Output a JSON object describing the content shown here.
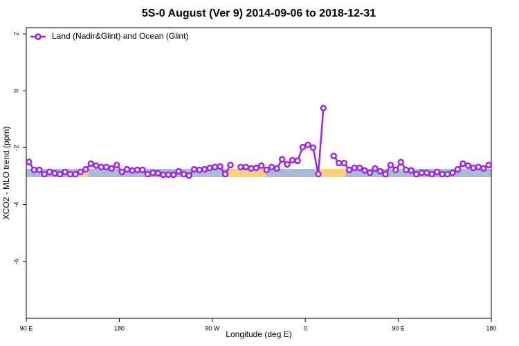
{
  "chart_data": {
    "type": "line",
    "title": "5S-0 August (Ver 9)   2014-09-06 to 2018-12-31",
    "x_label": "Longitude (deg E)",
    "y_label": "XCO2 - MLO trend (ppm)",
    "xlim": [
      90,
      540
    ],
    "ylim": [
      -8,
      2.22
    ],
    "xticks": [
      {
        "value": 90,
        "label": "90 E"
      },
      {
        "value": 180,
        "label": "180"
      },
      {
        "value": 270,
        "label": "90 W"
      },
      {
        "value": 360,
        "label": "0"
      },
      {
        "value": 450,
        "label": "90 E"
      },
      {
        "value": 540,
        "label": "180"
      }
    ],
    "yticks": [
      2,
      0,
      -2,
      -4,
      -6
    ],
    "legend": "top-left",
    "x": [
      92.5,
      97.5,
      102.5,
      107.5,
      112.5,
      117.5,
      122.5,
      127.5,
      132.5,
      137.5,
      142.5,
      147.5,
      152.5,
      157.5,
      162.5,
      167.5,
      172.5,
      177.5,
      182.5,
      187.5,
      192.5,
      197.5,
      202.5,
      207.5,
      212.5,
      217.5,
      222.5,
      227.5,
      232.5,
      237.5,
      242.5,
      247.5,
      252.5,
      257.5,
      262.5,
      267.5,
      272.5,
      277.5,
      282.5,
      287.5,
      292.5,
      297.5,
      302.5,
      307.5,
      312.5,
      317.5,
      322.5,
      327.5,
      332.5,
      337.5,
      342.5,
      347.5,
      352.5,
      357.5,
      362.5,
      367.5,
      372.5,
      377.5,
      382.5,
      387.5,
      392.5,
      397.5,
      402.5,
      407.5,
      412.5,
      417.5,
      422.5,
      427.5,
      432.5,
      437.5,
      442.5,
      447.5,
      452.5,
      457.5,
      462.5,
      467.5,
      472.5,
      477.5,
      482.5,
      487.5,
      492.5,
      497.5,
      502.5,
      507.5,
      512.5,
      517.5,
      522.5,
      527.5,
      532.5,
      537.5
    ],
    "series": [
      {
        "name": "Land (Nadir&Glint) and Ocean (Glint)",
        "color": "#a020f0",
        "values": [
          -2.5,
          -2.78,
          -2.78,
          -2.93,
          -2.85,
          -2.9,
          -2.93,
          -2.85,
          -2.93,
          -2.93,
          -2.85,
          -2.76,
          -2.56,
          -2.63,
          -2.68,
          -2.68,
          -2.73,
          -2.61,
          -2.85,
          -2.76,
          -2.8,
          -2.78,
          -2.78,
          -2.93,
          -2.88,
          -2.9,
          -2.95,
          -2.95,
          -2.95,
          -2.83,
          -2.93,
          -2.98,
          -2.76,
          -2.78,
          -2.76,
          -2.71,
          -2.68,
          -2.66,
          -2.93,
          -2.61,
          null,
          -2.68,
          -2.68,
          -2.73,
          -2.71,
          -2.63,
          -2.78,
          -2.68,
          -2.73,
          -2.41,
          -2.59,
          -2.44,
          -2.46,
          -1.98,
          -1.9,
          -2.0,
          -2.93,
          -0.61,
          null,
          -2.29,
          -2.54,
          -2.54,
          -2.78,
          -2.71,
          -2.71,
          -2.8,
          -2.88,
          -2.73,
          -2.83,
          -2.93,
          -2.61,
          -2.78,
          -2.51,
          -2.78,
          -2.8,
          -2.93,
          -2.88,
          -2.88,
          -2.93,
          -2.85,
          -2.93,
          -2.93,
          -2.88,
          -2.76,
          -2.56,
          -2.63,
          -2.71,
          -2.68,
          -2.73,
          -2.61
        ]
      }
    ]
  }
}
